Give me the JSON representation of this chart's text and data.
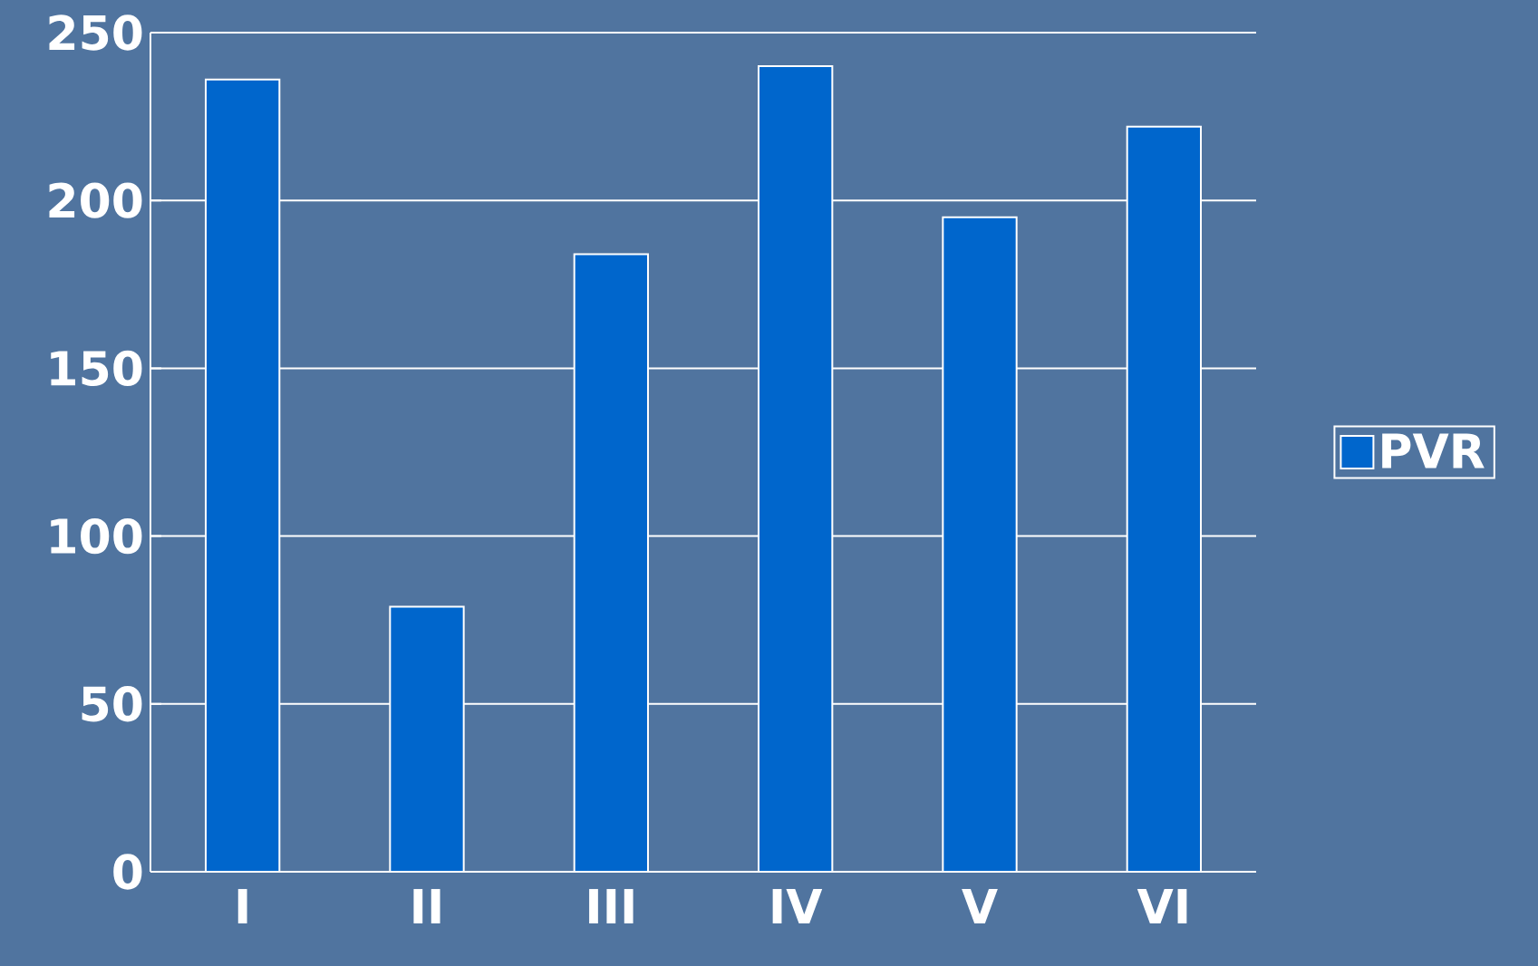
{
  "chart_data": {
    "type": "bar",
    "categories": [
      "I",
      "II",
      "III",
      "IV",
      "V",
      "VI"
    ],
    "series": [
      {
        "name": "PVR",
        "color": "#0066cc",
        "values": [
          236,
          79,
          184,
          240,
          195,
          222
        ]
      }
    ],
    "ylim": [
      0,
      250
    ],
    "yticks": [
      0,
      50,
      100,
      150,
      200,
      250
    ],
    "grid": "y",
    "legend": "right"
  }
}
